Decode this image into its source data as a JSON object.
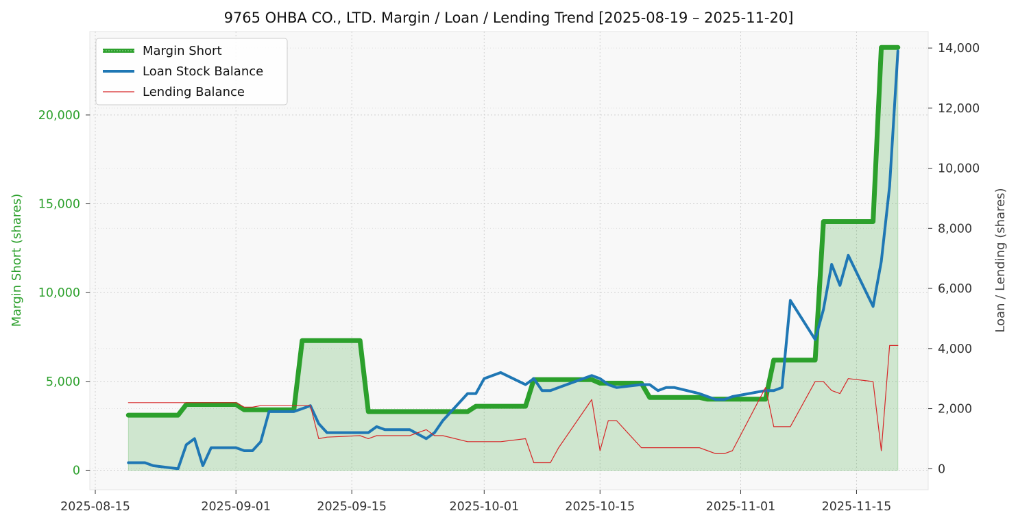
{
  "chart_data": {
    "type": "line",
    "title": "9765 OHBA CO., LTD. Margin / Loan / Lending Trend [2025-08-19 – 2025-11-20]",
    "x_tick_labels": [
      "2025-08-15",
      "2025-09-01",
      "2025-09-15",
      "2025-10-01",
      "2025-10-15",
      "2025-11-01",
      "2025-11-15"
    ],
    "left_axis": {
      "label": "Margin Short (shares)",
      "ylim": [
        -1100,
        24700
      ],
      "ticks": [
        0,
        5000,
        10000,
        15000,
        20000
      ],
      "tick_labels": [
        "0",
        "5,000",
        "10,000",
        "15,000",
        "20,000"
      ],
      "color": "#2ca02c"
    },
    "right_axis": {
      "label": "Loan / Lending (shares)",
      "ylim": [
        -700,
        14550
      ],
      "ticks": [
        0,
        2000,
        4000,
        6000,
        8000,
        10000,
        12000,
        14000
      ],
      "tick_labels": [
        "0",
        "2,000",
        "4,000",
        "6,000",
        "8,000",
        "10,000",
        "12,000",
        "14,000"
      ]
    },
    "x_range": [
      "2025-08-15",
      "2025-11-23"
    ],
    "grid": true,
    "legend_position": "top-left",
    "series": [
      {
        "name": "Margin Short",
        "axis": "left",
        "color": "#2ca02c",
        "fill": "#2ca02c",
        "x": [
          "2025-08-19",
          "2025-08-20",
          "2025-08-21",
          "2025-08-22",
          "2025-08-25",
          "2025-08-26",
          "2025-08-27",
          "2025-08-28",
          "2025-08-29",
          "2025-09-01",
          "2025-09-02",
          "2025-09-03",
          "2025-09-04",
          "2025-09-05",
          "2025-09-08",
          "2025-09-09",
          "2025-09-10",
          "2025-09-11",
          "2025-09-12",
          "2025-09-16",
          "2025-09-17",
          "2025-09-18",
          "2025-09-19",
          "2025-09-22",
          "2025-09-24",
          "2025-09-25",
          "2025-09-26",
          "2025-09-29",
          "2025-09-30",
          "2025-10-01",
          "2025-10-02",
          "2025-10-03",
          "2025-10-06",
          "2025-10-07",
          "2025-10-08",
          "2025-10-09",
          "2025-10-10",
          "2025-10-14",
          "2025-10-15",
          "2025-10-16",
          "2025-10-17",
          "2025-10-20",
          "2025-10-21",
          "2025-10-22",
          "2025-10-23",
          "2025-10-24",
          "2025-10-27",
          "2025-10-28",
          "2025-10-29",
          "2025-10-30",
          "2025-10-31",
          "2025-11-04",
          "2025-11-05",
          "2025-11-06",
          "2025-11-07",
          "2025-11-10",
          "2025-11-11",
          "2025-11-12",
          "2025-11-13",
          "2025-11-14",
          "2025-11-17",
          "2025-11-18",
          "2025-11-19",
          "2025-11-20"
        ],
        "values": [
          3100,
          3100,
          3100,
          3100,
          3100,
          3700,
          3700,
          3700,
          3700,
          3700,
          3400,
          3400,
          3400,
          3400,
          3400,
          7300,
          7300,
          7300,
          7300,
          7300,
          3300,
          3300,
          3300,
          3300,
          3300,
          3300,
          3300,
          3300,
          3600,
          3600,
          3600,
          3600,
          3600,
          5100,
          5100,
          5100,
          5100,
          5100,
          4900,
          4900,
          4900,
          4900,
          4100,
          4100,
          4100,
          4100,
          4100,
          4000,
          4000,
          4000,
          4000,
          4000,
          6200,
          6200,
          6200,
          6200,
          14000,
          14000,
          14000,
          14000,
          14000,
          23800,
          23800,
          23800
        ]
      },
      {
        "name": "Loan Stock Balance",
        "axis": "right",
        "color": "#1f77b4",
        "x": [
          "2025-08-19",
          "2025-08-20",
          "2025-08-21",
          "2025-08-22",
          "2025-08-25",
          "2025-08-26",
          "2025-08-27",
          "2025-08-28",
          "2025-08-29",
          "2025-09-01",
          "2025-09-02",
          "2025-09-03",
          "2025-09-04",
          "2025-09-05",
          "2025-09-08",
          "2025-09-09",
          "2025-09-10",
          "2025-09-11",
          "2025-09-12",
          "2025-09-16",
          "2025-09-17",
          "2025-09-18",
          "2025-09-19",
          "2025-09-22",
          "2025-09-24",
          "2025-09-25",
          "2025-09-26",
          "2025-09-29",
          "2025-09-30",
          "2025-10-01",
          "2025-10-02",
          "2025-10-03",
          "2025-10-06",
          "2025-10-07",
          "2025-10-08",
          "2025-10-09",
          "2025-10-10",
          "2025-10-14",
          "2025-10-15",
          "2025-10-16",
          "2025-10-17",
          "2025-10-20",
          "2025-10-21",
          "2025-10-22",
          "2025-10-23",
          "2025-10-24",
          "2025-10-27",
          "2025-10-28",
          "2025-10-29",
          "2025-10-30",
          "2025-10-31",
          "2025-11-04",
          "2025-11-05",
          "2025-11-06",
          "2025-11-07",
          "2025-11-10",
          "2025-11-11",
          "2025-11-12",
          "2025-11-13",
          "2025-11-14",
          "2025-11-17",
          "2025-11-18",
          "2025-11-19",
          "2025-11-20"
        ],
        "values": [
          200,
          200,
          200,
          100,
          0,
          800,
          1000,
          100,
          700,
          700,
          600,
          600,
          900,
          1900,
          1900,
          2000,
          2100,
          1500,
          1200,
          1200,
          1200,
          1400,
          1300,
          1300,
          1000,
          1200,
          1600,
          2500,
          2500,
          3000,
          3100,
          3200,
          2800,
          3000,
          2600,
          2600,
          2700,
          3100,
          3000,
          2800,
          2700,
          2800,
          2800,
          2600,
          2700,
          2700,
          2500,
          2400,
          2300,
          2300,
          2400,
          2600,
          2600,
          2700,
          5600,
          4300,
          5300,
          6800,
          6100,
          7100,
          5400,
          6900,
          9400,
          13900
        ]
      },
      {
        "name": "Lending Balance",
        "axis": "right",
        "color": "#d62728",
        "x": [
          "2025-08-19",
          "2025-08-20",
          "2025-08-21",
          "2025-08-22",
          "2025-08-25",
          "2025-08-26",
          "2025-08-27",
          "2025-08-28",
          "2025-08-29",
          "2025-09-01",
          "2025-09-02",
          "2025-09-03",
          "2025-09-04",
          "2025-09-05",
          "2025-09-08",
          "2025-09-09",
          "2025-09-10",
          "2025-09-11",
          "2025-09-12",
          "2025-09-16",
          "2025-09-17",
          "2025-09-18",
          "2025-09-19",
          "2025-09-22",
          "2025-09-24",
          "2025-09-25",
          "2025-09-26",
          "2025-09-29",
          "2025-09-30",
          "2025-10-01",
          "2025-10-02",
          "2025-10-03",
          "2025-10-06",
          "2025-10-07",
          "2025-10-08",
          "2025-10-09",
          "2025-10-10",
          "2025-10-14",
          "2025-10-15",
          "2025-10-16",
          "2025-10-17",
          "2025-10-20",
          "2025-10-21",
          "2025-10-22",
          "2025-10-23",
          "2025-10-24",
          "2025-10-27",
          "2025-10-28",
          "2025-10-29",
          "2025-10-30",
          "2025-10-31",
          "2025-11-04",
          "2025-11-05",
          "2025-11-06",
          "2025-11-07",
          "2025-11-10",
          "2025-11-11",
          "2025-11-12",
          "2025-11-13",
          "2025-11-14",
          "2025-11-17",
          "2025-11-18",
          "2025-11-19",
          "2025-11-20"
        ],
        "values": [
          2200,
          2200,
          2200,
          2200,
          2200,
          2200,
          2200,
          2200,
          2200,
          2200,
          2050,
          2050,
          2100,
          2100,
          2100,
          2100,
          2100,
          1000,
          1050,
          1100,
          1000,
          1100,
          1100,
          1100,
          1300,
          1100,
          1100,
          900,
          900,
          900,
          900,
          900,
          1000,
          200,
          200,
          200,
          700,
          2300,
          600,
          1600,
          1600,
          700,
          700,
          700,
          700,
          700,
          700,
          600,
          500,
          500,
          600,
          2700,
          1400,
          1400,
          1400,
          2900,
          2900,
          2600,
          2500,
          3000,
          2900,
          600,
          4100,
          4100
        ]
      }
    ]
  }
}
